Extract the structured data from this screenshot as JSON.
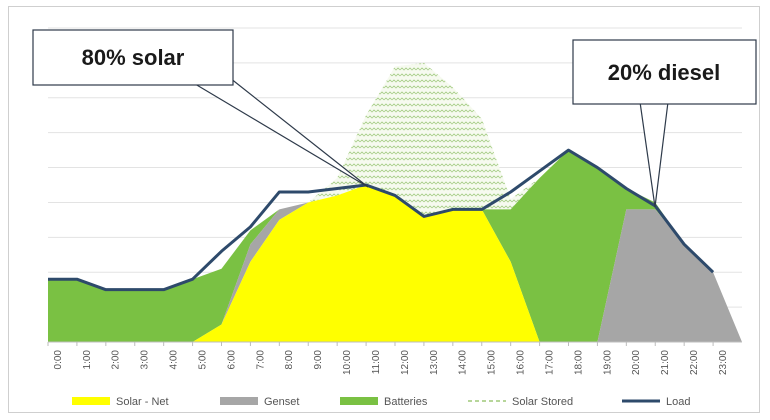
{
  "chart_data": {
    "type": "area",
    "categories": [
      "0:00",
      "1:00",
      "2:00",
      "3:00",
      "4:00",
      "5:00",
      "6:00",
      "7:00",
      "8:00",
      "9:00",
      "10:00",
      "11:00",
      "12:00",
      "13:00",
      "14:00",
      "15:00",
      "16:00",
      "17:00",
      "18:00",
      "19:00",
      "20:00",
      "21:00",
      "22:00",
      "23:00"
    ],
    "x": [
      0,
      1,
      2,
      3,
      4,
      5,
      6,
      7,
      8,
      9,
      10,
      11,
      12,
      13,
      14,
      15,
      16,
      17,
      18,
      19,
      20,
      21,
      22,
      23,
      24
    ],
    "series": [
      {
        "name": "Solar - Net",
        "color": "#ffff00",
        "values": [
          0,
          0,
          0,
          0,
          0,
          0,
          0.5,
          2.3,
          3.5,
          4.0,
          4.2,
          4.5,
          4.2,
          3.6,
          3.8,
          3.8,
          2.3,
          0,
          0,
          0,
          0,
          0,
          0,
          0,
          0
        ]
      },
      {
        "name": "Genset",
        "color": "#a6a6a6",
        "values": [
          0,
          0,
          0,
          0,
          0,
          0,
          0,
          0.5,
          0.3,
          0,
          0,
          0,
          0,
          0,
          0,
          0,
          0,
          0,
          0,
          0,
          3.8,
          3.8,
          2.8,
          2.0,
          0
        ]
      },
      {
        "name": "Batteries",
        "color": "#7ac143",
        "values": [
          1.8,
          1.8,
          1.5,
          1.5,
          1.5,
          1.8,
          1.6,
          0.4,
          0,
          0,
          0,
          0,
          0,
          0,
          0,
          0,
          1.5,
          4.7,
          5.5,
          5.0,
          0.6,
          0.2,
          0,
          0,
          0
        ]
      },
      {
        "name": "Solar Stored",
        "color": "#c9e0b0",
        "values": [
          0,
          0,
          0,
          0,
          0,
          0,
          0,
          0,
          0,
          0,
          0.5,
          2.0,
          3.7,
          4.4,
          3.5,
          2.6,
          0.3,
          0,
          0,
          0,
          0,
          0,
          0,
          0,
          0
        ]
      },
      {
        "name": "Load",
        "color": "#2e4a6b",
        "values": [
          1.8,
          1.8,
          1.5,
          1.5,
          1.5,
          1.8,
          2.6,
          3.3,
          4.3,
          4.3,
          4.4,
          4.5,
          4.2,
          3.6,
          3.8,
          3.8,
          4.3,
          4.9,
          5.5,
          5.0,
          4.4,
          3.9,
          2.8,
          2.0,
          null
        ]
      }
    ],
    "ylim": [
      0,
      9
    ],
    "grid": true,
    "legend": "bottom",
    "annotations": [
      {
        "text": "80% solar"
      },
      {
        "text": "20% diesel"
      }
    ]
  }
}
